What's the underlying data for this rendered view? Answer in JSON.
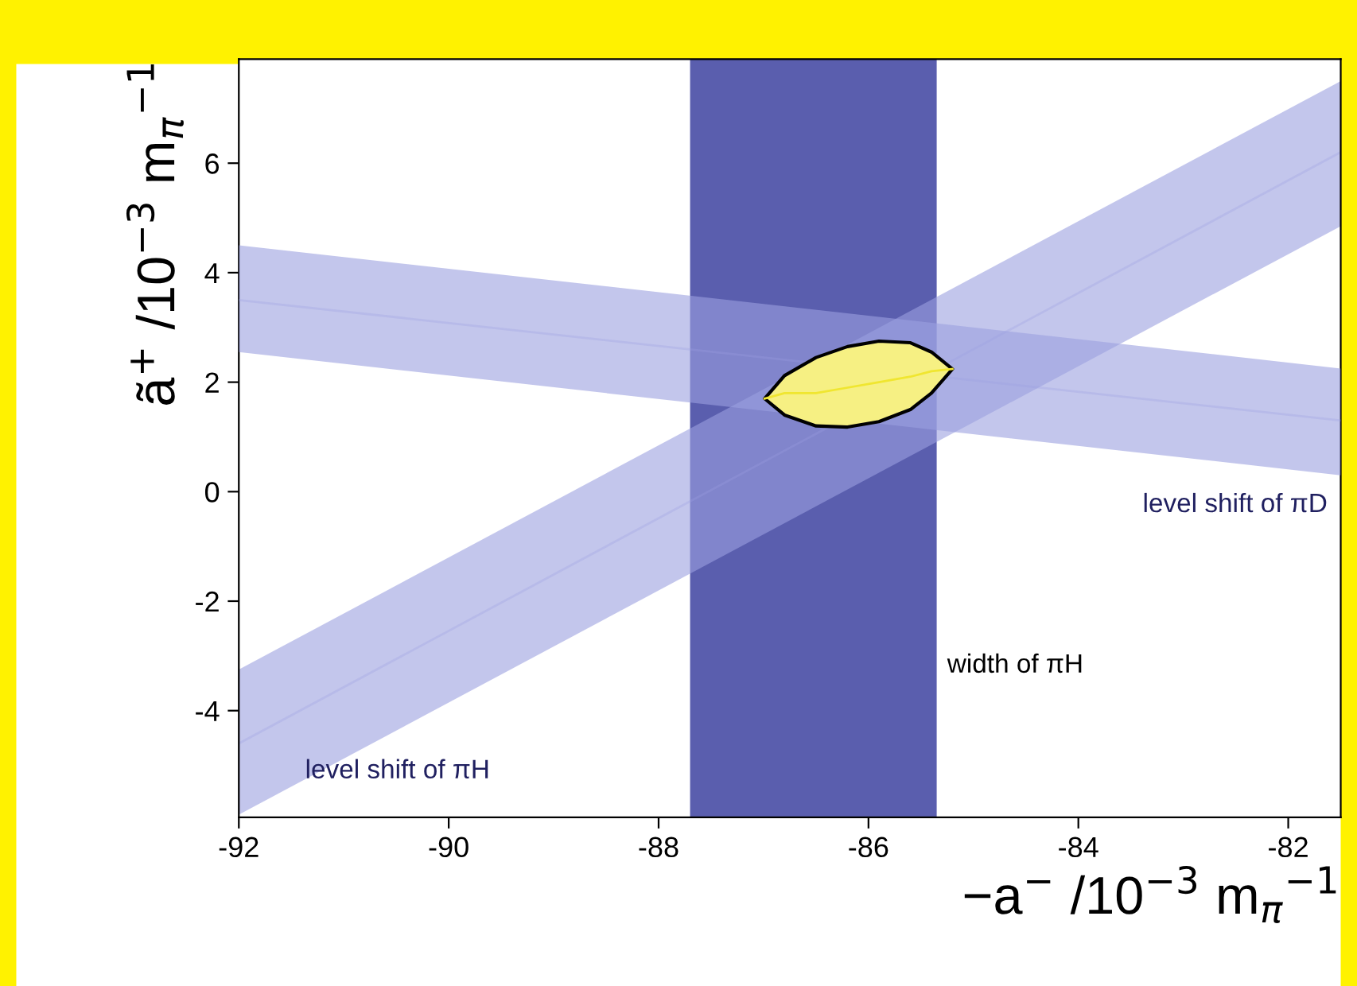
{
  "chart_data": {
    "type": "line",
    "xlabel": "−a$^{−}$ /10$^{−3}$ m$_{π}$$^{−1}$",
    "ylabel": "ã$^{+}$ /10$^{−3}$ m$_{π}$$^{−1}$",
    "xlim": [
      -92,
      -81.5
    ],
    "ylim": [
      -5.95,
      7.9
    ],
    "xticks": [
      -92,
      -90,
      -88,
      -86,
      -84,
      -82
    ],
    "yticks": [
      -4,
      -2,
      0,
      2,
      4,
      6
    ],
    "grid": false,
    "legend": false,
    "bands": [
      {
        "axis": "x",
        "from": -87.7,
        "to": -85.35,
        "label": "width of πH",
        "color": "#5a5eae"
      }
    ],
    "series": [
      {
        "name": "level shift of πH",
        "color": "#9ba0e0",
        "x": [
          -92,
          -81.5
        ],
        "values": [
          -4.6,
          6.2
        ],
        "upper": [
          -3.25,
          7.5
        ],
        "lower": [
          -5.9,
          4.85
        ]
      },
      {
        "name": "level shift of πD",
        "color": "#9ba0e0",
        "x": [
          -92,
          -81.5
        ],
        "values": [
          3.5,
          1.3
        ],
        "upper": [
          4.5,
          2.25
        ],
        "lower": [
          2.55,
          0.3
        ]
      },
      {
        "color": "#f0e630",
        "x": [
          -86.99,
          -86.8,
          -86.5,
          -86.2,
          -85.9,
          -85.6,
          -85.4,
          -85.2
        ],
        "values": [
          1.7,
          1.8,
          1.8,
          1.9,
          2.0,
          2.1,
          2.2,
          2.24
        ],
        "upper": [
          1.7,
          2.12,
          2.45,
          2.65,
          2.75,
          2.72,
          2.55,
          2.24
        ],
        "lower": [
          1.7,
          1.4,
          1.2,
          1.18,
          1.28,
          1.5,
          1.8,
          2.24
        ]
      }
    ]
  }
}
